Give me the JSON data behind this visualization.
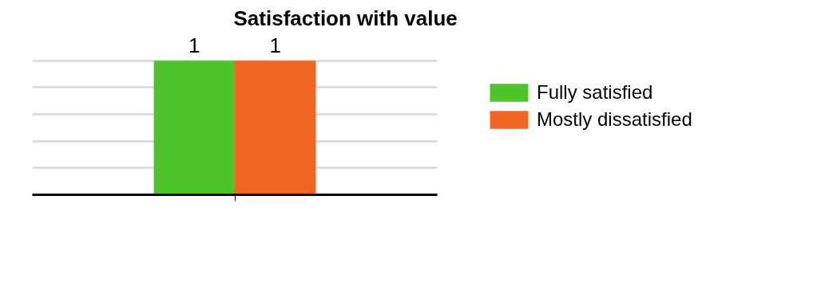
{
  "chart_data": {
    "type": "bar",
    "title": "Satisfaction with value",
    "categories": [
      null
    ],
    "series": [
      {
        "name": "Fully satisfied",
        "color": "#4cc42a",
        "values": [
          1
        ]
      },
      {
        "name": "Mostly dissatisfied",
        "color": "#f26522",
        "values": [
          1
        ]
      }
    ],
    "grid": "y",
    "legend": "right",
    "data_labels": true
  }
}
